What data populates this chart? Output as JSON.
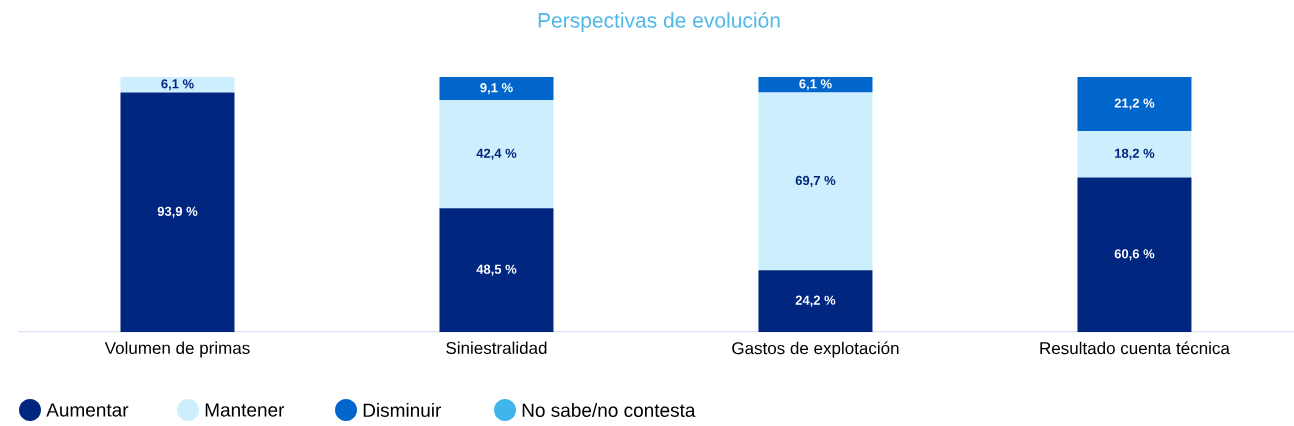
{
  "chart_data": {
    "type": "bar",
    "stacked": true,
    "title": "Perspectivas de evolución",
    "categories": [
      "Volumen de primas",
      "Siniestralidad",
      "Gastos de explotación",
      "Resultado cuenta técnica"
    ],
    "series": [
      {
        "name": "Aumentar",
        "color": "#00267f",
        "values": [
          93.9,
          48.5,
          24.2,
          60.6
        ],
        "value_labels": [
          "93,9 %",
          "48,5 %",
          "24,2 %",
          "60,6 %"
        ]
      },
      {
        "name": "Mantener",
        "color": "#cdeefd",
        "values": [
          6.1,
          42.4,
          69.7,
          18.2
        ],
        "value_labels": [
          "6,1 %",
          "42,4 %",
          "69,7 %",
          "18,2 %"
        ]
      },
      {
        "name": "Disminuir",
        "color": "#0066cc",
        "values": [
          null,
          9.1,
          6.1,
          21.2
        ],
        "value_labels": [
          null,
          "9,1 %",
          "6,1 %",
          "21,2 %"
        ]
      },
      {
        "name": "No sabe/no contesta",
        "color": "#3fb5ec",
        "values": [
          null,
          null,
          null,
          null
        ]
      }
    ],
    "ylim": [
      0,
      100
    ],
    "tick_labels": "x",
    "legend": "bottom left"
  }
}
